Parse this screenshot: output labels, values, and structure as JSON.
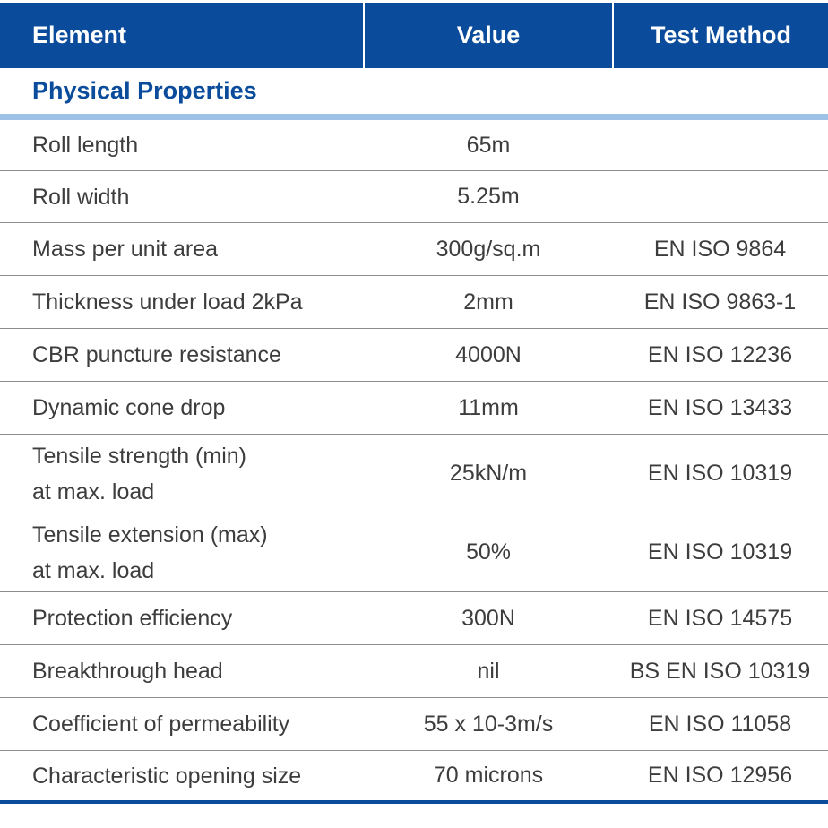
{
  "header": {
    "element": "Element",
    "value": "Value",
    "test_method": "Test Method"
  },
  "section": {
    "title": "Physical Properties"
  },
  "rows": [
    {
      "element": "Roll length",
      "element_line2": "",
      "value": "65m",
      "method": ""
    },
    {
      "element": "Roll width",
      "element_line2": "",
      "value": "5.25m",
      "method": ""
    },
    {
      "element": "Mass per unit area",
      "element_line2": "",
      "value": "300g/sq.m",
      "method": "EN ISO 9864"
    },
    {
      "element": "Thickness under load 2kPa",
      "element_line2": "",
      "value": "2mm",
      "method": "EN ISO 9863-1"
    },
    {
      "element": "CBR puncture resistance",
      "element_line2": "",
      "value": "4000N",
      "method": "EN ISO 12236"
    },
    {
      "element": "Dynamic cone drop",
      "element_line2": "",
      "value": "11mm",
      "method": "EN ISO 13433"
    },
    {
      "element": "Tensile strength (min)",
      "element_line2": "at max. load",
      "value": "25kN/m",
      "method": "EN ISO 10319"
    },
    {
      "element": "Tensile extension (max)",
      "element_line2": "at max. load",
      "value": "50%",
      "method": "EN ISO 10319"
    },
    {
      "element": "Protection efficiency",
      "element_line2": "",
      "value": "300N",
      "method": "EN ISO 14575"
    },
    {
      "element": "Breakthrough head",
      "element_line2": "",
      "value": "nil",
      "method": "BS EN ISO 10319"
    },
    {
      "element": "Coefficient of permeability",
      "element_line2": "",
      "value": "55 x 10-3m/s",
      "method": "EN ISO 11058"
    },
    {
      "element": "Characteristic opening size",
      "element_line2": "",
      "value": "70 microns",
      "method": "EN ISO 12956"
    }
  ]
}
